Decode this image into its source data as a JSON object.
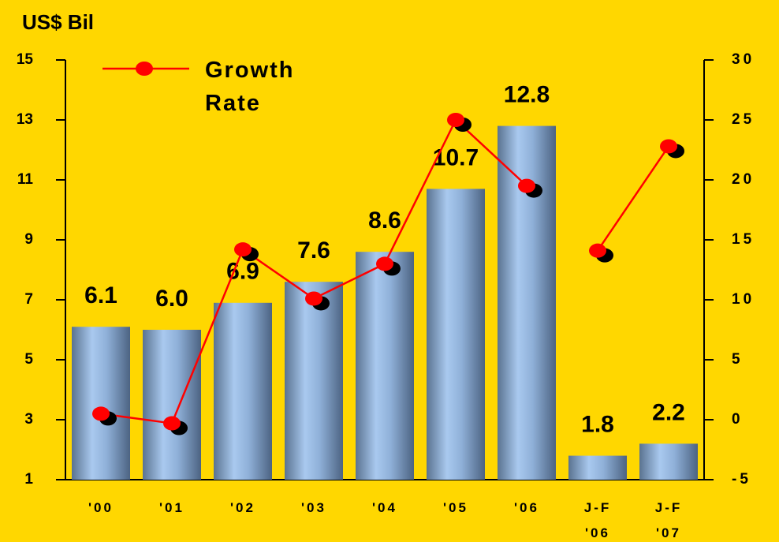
{
  "chart_data": {
    "type": "bar_line",
    "y_label": "US$ Bil",
    "categories": [
      "'00",
      "'01",
      "'02",
      "'03",
      "'04",
      "'05",
      "'06",
      "J-F '06",
      "J-F '07"
    ],
    "series": [
      {
        "name": "US$ Bil",
        "type": "bar",
        "color": "#8fb4e0",
        "values": [
          6.1,
          6.0,
          6.9,
          7.6,
          8.6,
          10.7,
          12.8,
          1.8,
          2.2
        ],
        "value_labels": [
          "6.1",
          "6.0",
          "6.9",
          "7.6",
          "8.6",
          "10.7",
          "12.8",
          "1.8",
          "2.2"
        ]
      },
      {
        "name": "Growth Rate",
        "type": "line",
        "axis": "y2",
        "color": "#ff0000",
        "values": [
          0.5,
          -0.3,
          14.2,
          10.1,
          13,
          25,
          19.5,
          14.1,
          22.8
        ],
        "gap_after": [
          6
        ]
      }
    ],
    "ylim": [
      1,
      15
    ],
    "yticks": [
      1,
      3,
      5,
      7,
      9,
      11,
      13,
      15
    ],
    "y2lim": [
      -5,
      30
    ],
    "y2ticks": [
      -5,
      0,
      5,
      10,
      15,
      20,
      25,
      30
    ],
    "legend": "top-left"
  }
}
